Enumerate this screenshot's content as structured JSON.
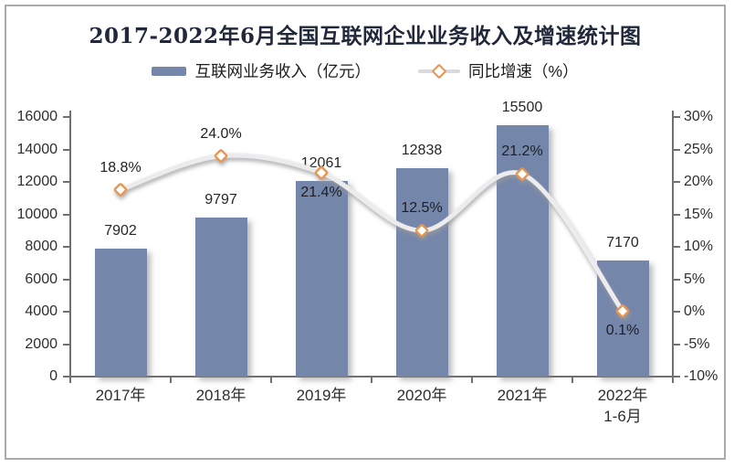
{
  "chart_data": {
    "type": "bar+line",
    "title": "2017-2022年6月全国互联网企业业务收入及增速统计图",
    "categories": [
      "2017年",
      "2018年",
      "2019年",
      "2020年",
      "2021年",
      "2022年\n1-6月"
    ],
    "series": [
      {
        "name": "互联网业务收入（亿元）",
        "type": "bar",
        "axis": "left",
        "values": [
          7902,
          9797,
          12061,
          12838,
          15500,
          7170
        ],
        "value_labels": [
          "7902",
          "9797",
          "12061",
          "12838",
          "15500",
          "7170"
        ],
        "color": "#7586AB"
      },
      {
        "name": "同比增速（%）",
        "type": "line",
        "axis": "right",
        "values": [
          18.8,
          24.0,
          21.4,
          12.5,
          21.2,
          0.1
        ],
        "value_labels": [
          "18.8%",
          "24.0%",
          "21.4%",
          "12.5%",
          "21.2%",
          "0.1%"
        ],
        "label_placement": [
          "above",
          "above",
          "below",
          "above",
          "above",
          "below"
        ],
        "line_color": "#ECECEF",
        "marker_color": "#E8954F"
      }
    ],
    "left_axis": {
      "min": 0,
      "max": 16000,
      "step": 2000,
      "tick_labels": [
        "0",
        "2000",
        "4000",
        "6000",
        "8000",
        "10000",
        "12000",
        "14000",
        "16000"
      ]
    },
    "right_axis": {
      "min": -10,
      "max": 30,
      "step": 5,
      "tick_labels": [
        "-10%",
        "-5%",
        "0%",
        "5%",
        "10%",
        "15%",
        "20%",
        "25%",
        "30%"
      ]
    },
    "grid": false,
    "legend_position": "top"
  },
  "frame": {
    "border_color": "#ABABAB",
    "background": "#FFFFFF"
  }
}
